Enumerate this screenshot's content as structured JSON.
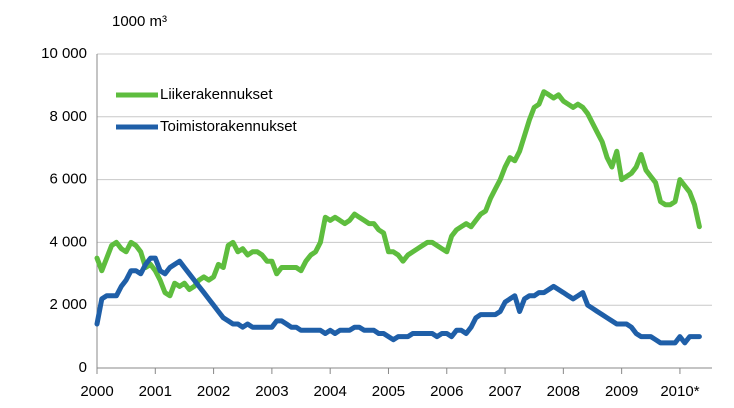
{
  "chart_data": {
    "type": "line",
    "unit_label": "1000 m³",
    "x": [
      2000,
      2000.083,
      2000.167,
      2000.25,
      2000.333,
      2000.417,
      2000.5,
      2000.583,
      2000.667,
      2000.75,
      2000.833,
      2000.917,
      2001,
      2001.083,
      2001.167,
      2001.25,
      2001.333,
      2001.417,
      2001.5,
      2001.583,
      2001.667,
      2001.75,
      2001.833,
      2001.917,
      2002,
      2002.083,
      2002.167,
      2002.25,
      2002.333,
      2002.417,
      2002.5,
      2002.583,
      2002.667,
      2002.75,
      2002.833,
      2002.917,
      2003,
      2003.083,
      2003.167,
      2003.25,
      2003.333,
      2003.417,
      2003.5,
      2003.583,
      2003.667,
      2003.75,
      2003.833,
      2003.917,
      2004,
      2004.083,
      2004.167,
      2004.25,
      2004.333,
      2004.417,
      2004.5,
      2004.583,
      2004.667,
      2004.75,
      2004.833,
      2004.917,
      2005,
      2005.083,
      2005.167,
      2005.25,
      2005.333,
      2005.417,
      2005.5,
      2005.583,
      2005.667,
      2005.75,
      2005.833,
      2005.917,
      2006,
      2006.083,
      2006.167,
      2006.25,
      2006.333,
      2006.417,
      2006.5,
      2006.583,
      2006.667,
      2006.75,
      2006.833,
      2006.917,
      2007,
      2007.083,
      2007.167,
      2007.25,
      2007.333,
      2007.417,
      2007.5,
      2007.583,
      2007.667,
      2007.75,
      2007.833,
      2007.917,
      2008,
      2008.083,
      2008.167,
      2008.25,
      2008.333,
      2008.417,
      2008.5,
      2008.583,
      2008.667,
      2008.75,
      2008.833,
      2008.917,
      2009,
      2009.083,
      2009.167,
      2009.25,
      2009.333,
      2009.417,
      2009.5,
      2009.583,
      2009.667,
      2009.75,
      2009.833,
      2009.917,
      2010,
      2010.083,
      2010.167,
      2010.25,
      2010.333
    ],
    "series": [
      {
        "name": "Liikerakennukset",
        "color": "#5ebd3e",
        "values": [
          3500,
          3100,
          3500,
          3900,
          4000,
          3800,
          3700,
          4000,
          3900,
          3700,
          3200,
          3300,
          3100,
          2800,
          2400,
          2300,
          2700,
          2600,
          2700,
          2500,
          2600,
          2800,
          2900,
          2800,
          2900,
          3300,
          3200,
          3900,
          4000,
          3700,
          3800,
          3600,
          3700,
          3700,
          3600,
          3400,
          3400,
          3000,
          3200,
          3200,
          3200,
          3200,
          3100,
          3400,
          3600,
          3700,
          4000,
          4800,
          4700,
          4800,
          4700,
          4600,
          4700,
          4900,
          4800,
          4700,
          4600,
          4600,
          4400,
          4300,
          3700,
          3700,
          3600,
          3400,
          3600,
          3700,
          3800,
          3900,
          4000,
          4000,
          3900,
          3800,
          3700,
          4200,
          4400,
          4500,
          4600,
          4500,
          4700,
          4900,
          5000,
          5400,
          5700,
          6000,
          6400,
          6700,
          6600,
          6900,
          7400,
          7900,
          8300,
          8400,
          8800,
          8700,
          8600,
          8700,
          8500,
          8400,
          8300,
          8400,
          8300,
          8100,
          7800,
          7500,
          7200,
          6700,
          6400,
          6900,
          6000,
          6100,
          6200,
          6400,
          6800,
          6300,
          6100,
          5900,
          5300,
          5200,
          5200,
          5300,
          6000,
          5800,
          5600,
          5200,
          4500
        ]
      },
      {
        "name": "Toimistorakennukset",
        "color": "#1f5fa8",
        "values": [
          1400,
          2200,
          2300,
          2300,
          2300,
          2600,
          2800,
          3100,
          3100,
          3000,
          3300,
          3500,
          3500,
          3100,
          3000,
          3200,
          3300,
          3400,
          3200,
          3000,
          2800,
          2600,
          2400,
          2200,
          2000,
          1800,
          1600,
          1500,
          1400,
          1400,
          1300,
          1400,
          1300,
          1300,
          1300,
          1300,
          1300,
          1500,
          1500,
          1400,
          1300,
          1300,
          1200,
          1200,
          1200,
          1200,
          1200,
          1100,
          1200,
          1100,
          1200,
          1200,
          1200,
          1300,
          1300,
          1200,
          1200,
          1200,
          1100,
          1100,
          1000,
          900,
          1000,
          1000,
          1000,
          1100,
          1100,
          1100,
          1100,
          1100,
          1000,
          1100,
          1100,
          1000,
          1200,
          1200,
          1100,
          1300,
          1600,
          1700,
          1700,
          1700,
          1700,
          1800,
          2100,
          2200,
          2300,
          1800,
          2200,
          2300,
          2300,
          2400,
          2400,
          2500,
          2600,
          2500,
          2400,
          2300,
          2200,
          2300,
          2400,
          2000,
          1900,
          1800,
          1700,
          1600,
          1500,
          1400,
          1400,
          1400,
          1300,
          1100,
          1000,
          1000,
          1000,
          900,
          800,
          800,
          800,
          800,
          1000,
          800,
          1000,
          1000,
          1000
        ]
      }
    ],
    "xlim": [
      2000,
      2010.55
    ],
    "xticks": [
      2000,
      2001,
      2002,
      2003,
      2004,
      2005,
      2006,
      2007,
      2008,
      2009,
      {
        "value": 2010,
        "label": "2010*"
      }
    ],
    "ylim": [
      0,
      10000
    ],
    "yticks": [
      0,
      {
        "value": 2000,
        "label": "2 000"
      },
      {
        "value": 4000,
        "label": "4 000"
      },
      {
        "value": 6000,
        "label": "6 000"
      },
      {
        "value": 8000,
        "label": "8 000"
      },
      {
        "value": 10000,
        "label": "10 000"
      }
    ],
    "grid": true
  }
}
